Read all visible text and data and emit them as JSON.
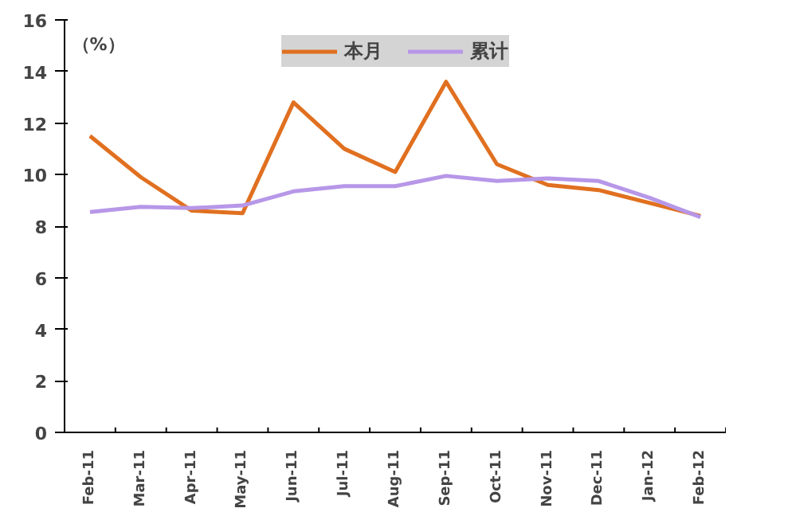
{
  "chart_data": {
    "type": "line",
    "ylabel": "（%）",
    "categories": [
      "Feb-11",
      "Mar-11",
      "Apr-11",
      "May-11",
      "Jun-11",
      "Jul-11",
      "Aug-11",
      "Sep-11",
      "Oct-11",
      "Nov-11",
      "Dec-11",
      "Jan-12",
      "Feb-12"
    ],
    "series": [
      {
        "name": "本月",
        "color": "#e07020",
        "values": [
          11.5,
          9.9,
          8.6,
          8.5,
          12.8,
          11.0,
          10.1,
          13.6,
          10.4,
          9.6,
          9.4,
          8.9,
          8.4
        ]
      },
      {
        "name": "累计",
        "color": "#b797e8",
        "values": [
          8.55,
          8.75,
          8.7,
          8.8,
          9.35,
          9.55,
          9.55,
          9.95,
          9.75,
          9.85,
          9.75,
          9.1,
          8.35
        ]
      }
    ],
    "ylim": [
      0,
      16
    ],
    "yticks": [
      0,
      2,
      4,
      6,
      8,
      10,
      12,
      14,
      16
    ],
    "grid": false,
    "legend": "top",
    "line_style": "solid",
    "marker": "none"
  }
}
